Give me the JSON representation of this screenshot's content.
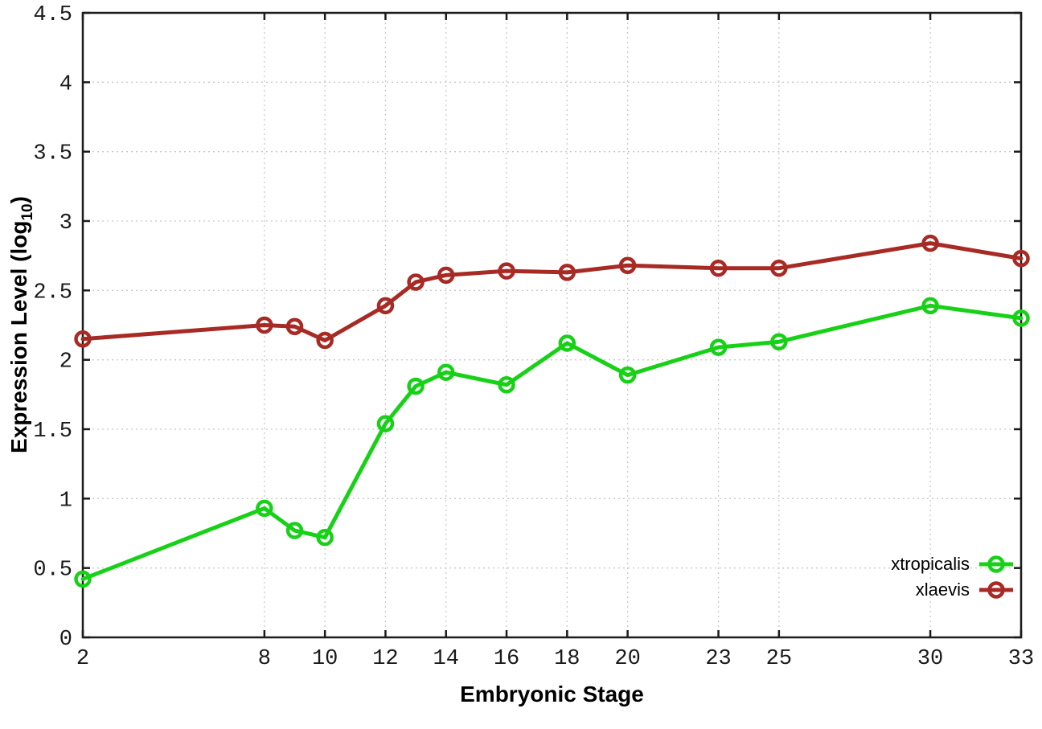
{
  "figure": {
    "background": "#ffffff"
  },
  "chart_data": {
    "type": "line",
    "title": "",
    "xlabel": "Embryonic Stage",
    "ylabel": "Expression Level (log10)",
    "ylabel_parts": {
      "prefix": "Expression Level (log",
      "sub": "10",
      "suffix": ")"
    },
    "x": [
      2,
      8,
      9,
      10,
      12,
      13,
      14,
      16,
      18,
      20,
      23,
      25,
      30,
      33
    ],
    "series": [
      {
        "name": "xtropicalis",
        "color": "#17d117",
        "values": [
          0.42,
          0.93,
          0.77,
          0.72,
          1.54,
          1.81,
          1.91,
          1.82,
          2.12,
          1.89,
          2.09,
          2.13,
          2.39,
          2.3
        ]
      },
      {
        "name": "xlaevis",
        "color": "#a82a24",
        "values": [
          2.15,
          2.25,
          2.24,
          2.14,
          2.39,
          2.56,
          2.61,
          2.64,
          2.63,
          2.68,
          2.66,
          2.66,
          2.84,
          2.73
        ]
      }
    ],
    "xticks": [
      2,
      8,
      10,
      12,
      14,
      16,
      18,
      20,
      23,
      25,
      30,
      33
    ],
    "yticks": [
      0,
      0.5,
      1,
      1.5,
      2,
      2.5,
      3,
      3.5,
      4,
      4.5
    ],
    "xlim": [
      2,
      33
    ],
    "ylim": [
      0,
      4.5
    ],
    "grid": true,
    "legend_position": "bottom-right"
  },
  "style": {
    "axis_color": "#1c1c1c",
    "grid_color": "#c9c9c9",
    "text_color": "#1a1a1a"
  }
}
